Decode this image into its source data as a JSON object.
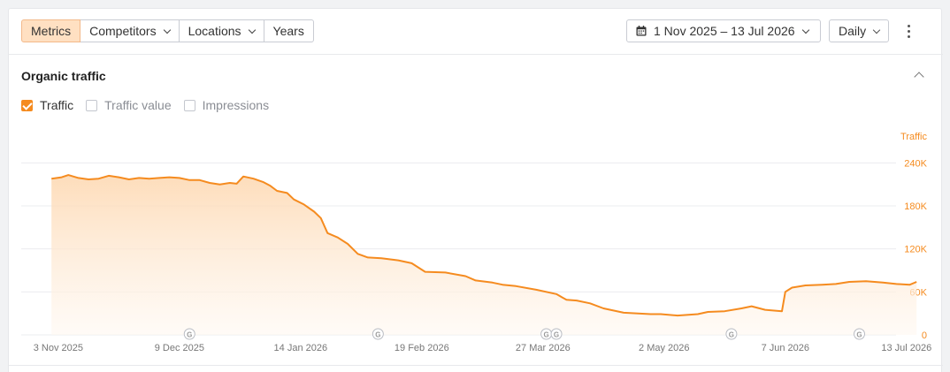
{
  "toolbar": {
    "tabs": [
      {
        "label": "Metrics",
        "active": true
      },
      {
        "label": "Competitors",
        "dropdown": true
      },
      {
        "label": "Locations",
        "dropdown": true
      },
      {
        "label": "Years"
      }
    ],
    "date_range": "1 Nov 2025 – 13 Jul 2026",
    "granularity": "Daily",
    "icons": {
      "calendar": "calendar-icon",
      "menu": "more-vertical-icon"
    }
  },
  "section": {
    "title": "Organic traffic",
    "checkboxes": [
      {
        "label": "Traffic",
        "checked": true
      },
      {
        "label": "Traffic value",
        "checked": false
      },
      {
        "label": "Impressions",
        "checked": false
      }
    ]
  },
  "colors": {
    "accent": "#f58b1f",
    "fill_top": "#fdd9b3",
    "fill_bottom": "#fff8f1",
    "grid": "#ebecef"
  },
  "chart_data": {
    "type": "area",
    "ylabel": "Traffic",
    "ylim": [
      0,
      270000
    ],
    "y_ticks": [
      {
        "value": 0,
        "label": "0"
      },
      {
        "value": 60000,
        "label": "60K"
      },
      {
        "value": 120000,
        "label": "120K"
      },
      {
        "value": 180000,
        "label": "180K"
      },
      {
        "value": 240000,
        "label": "240K"
      }
    ],
    "x_range": [
      "2025-10-23",
      "2026-07-17"
    ],
    "x_ticks": [
      "3 Nov 2025",
      "9 Dec 2025",
      "14 Jan 2026",
      "19 Feb 2026",
      "27 Mar 2026",
      "2 May 2026",
      "7 Jun 2026",
      "13 Jul 2026"
    ],
    "annotations": [
      {
        "date": "2025-12-12",
        "label": "G"
      },
      {
        "date": "2026-02-06",
        "label": "G"
      },
      {
        "date": "2026-03-28",
        "label": "G"
      },
      {
        "date": "2026-03-31",
        "label": "G"
      },
      {
        "date": "2026-05-22",
        "label": "G"
      },
      {
        "date": "2026-06-29",
        "label": "G"
      }
    ],
    "series": [
      {
        "name": "Traffic",
        "points": [
          [
            "2025-11-01",
            218000
          ],
          [
            "2025-11-04",
            220000
          ],
          [
            "2025-11-06",
            223000
          ],
          [
            "2025-11-09",
            219000
          ],
          [
            "2025-11-12",
            217000
          ],
          [
            "2025-11-15",
            218000
          ],
          [
            "2025-11-18",
            222000
          ],
          [
            "2025-11-21",
            220000
          ],
          [
            "2025-11-24",
            217000
          ],
          [
            "2025-11-27",
            219000
          ],
          [
            "2025-11-30",
            218000
          ],
          [
            "2025-12-03",
            219000
          ],
          [
            "2025-12-06",
            220000
          ],
          [
            "2025-12-09",
            219000
          ],
          [
            "2025-12-12",
            216000
          ],
          [
            "2025-12-15",
            216000
          ],
          [
            "2025-12-18",
            212000
          ],
          [
            "2025-12-21",
            210000
          ],
          [
            "2025-12-24",
            212000
          ],
          [
            "2025-12-26",
            211000
          ],
          [
            "2025-12-28",
            221000
          ],
          [
            "2025-12-31",
            218000
          ],
          [
            "2026-01-03",
            213000
          ],
          [
            "2026-01-05",
            208000
          ],
          [
            "2026-01-07",
            201000
          ],
          [
            "2026-01-10",
            198000
          ],
          [
            "2026-01-12",
            189000
          ],
          [
            "2026-01-15",
            182000
          ],
          [
            "2026-01-18",
            172000
          ],
          [
            "2026-01-20",
            163000
          ],
          [
            "2026-01-22",
            142000
          ],
          [
            "2026-01-25",
            136000
          ],
          [
            "2026-01-28",
            127000
          ],
          [
            "2026-01-31",
            113000
          ],
          [
            "2026-02-03",
            108000
          ],
          [
            "2026-02-07",
            107000
          ],
          [
            "2026-02-12",
            104000
          ],
          [
            "2026-02-16",
            100000
          ],
          [
            "2026-02-20",
            88000
          ],
          [
            "2026-02-26",
            87000
          ],
          [
            "2026-03-04",
            82000
          ],
          [
            "2026-03-07",
            76000
          ],
          [
            "2026-03-12",
            73000
          ],
          [
            "2026-03-15",
            70000
          ],
          [
            "2026-03-19",
            68000
          ],
          [
            "2026-03-25",
            63000
          ],
          [
            "2026-03-31",
            57000
          ],
          [
            "2026-04-03",
            49000
          ],
          [
            "2026-04-06",
            48000
          ],
          [
            "2026-04-10",
            44000
          ],
          [
            "2026-04-14",
            37000
          ],
          [
            "2026-04-20",
            31000
          ],
          [
            "2026-04-28",
            29000
          ],
          [
            "2026-05-01",
            29000
          ],
          [
            "2026-05-06",
            27000
          ],
          [
            "2026-05-12",
            29000
          ],
          [
            "2026-05-15",
            32000
          ],
          [
            "2026-05-20",
            33000
          ],
          [
            "2026-05-25",
            37000
          ],
          [
            "2026-05-28",
            40000
          ],
          [
            "2026-06-01",
            35000
          ],
          [
            "2026-06-06",
            33000
          ],
          [
            "2026-06-07",
            60000
          ],
          [
            "2026-06-09",
            66000
          ],
          [
            "2026-06-13",
            69000
          ],
          [
            "2026-06-18",
            70000
          ],
          [
            "2026-06-22",
            71000
          ],
          [
            "2026-06-26",
            74000
          ],
          [
            "2026-07-01",
            75000
          ],
          [
            "2026-07-06",
            73000
          ],
          [
            "2026-07-10",
            71000
          ],
          [
            "2026-07-14",
            70000
          ],
          [
            "2026-07-16",
            74000
          ]
        ]
      }
    ]
  }
}
